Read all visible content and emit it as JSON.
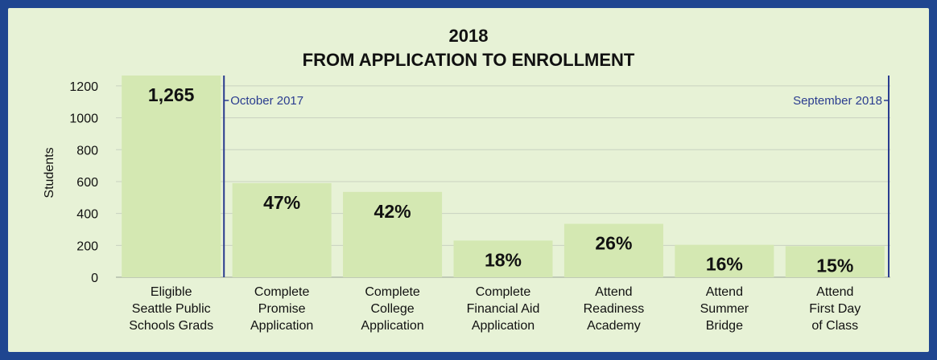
{
  "chart_data": {
    "type": "bar",
    "title": [
      "2018",
      "FROM APPLICATION TO ENROLLMENT"
    ],
    "ylabel": "Students",
    "xlabel": "",
    "ylim": [
      0,
      1200
    ],
    "yticks": [
      0,
      200,
      400,
      600,
      800,
      1000,
      1200
    ],
    "grid": true,
    "categories": [
      [
        "Eligible",
        "Seattle Public",
        "Schools Grads"
      ],
      [
        "Complete",
        "Promise",
        "Application"
      ],
      [
        "Complete",
        "College",
        "Application"
      ],
      [
        "Complete",
        "Financial Aid",
        "Application"
      ],
      [
        "Attend",
        "Readiness",
        "Academy"
      ],
      [
        "Attend",
        "Summer",
        "Bridge"
      ],
      [
        "Attend",
        "First Day",
        "of Class"
      ]
    ],
    "values": [
      1265,
      590,
      535,
      230,
      335,
      203,
      195
    ],
    "data_labels": [
      "1,265",
      "47%",
      "42%",
      "18%",
      "26%",
      "16%",
      "15%"
    ],
    "markers": [
      {
        "label": "October 2017",
        "after_category": 0,
        "align": "right"
      },
      {
        "label": "September 2018",
        "after_category": 6,
        "align": "left"
      }
    ],
    "colors": {
      "bar": "#d4e8b2",
      "background": "#e7f2d6",
      "border": "#1f4690",
      "marker": "#2a3c8f",
      "grid": "#c8d1c0"
    }
  }
}
